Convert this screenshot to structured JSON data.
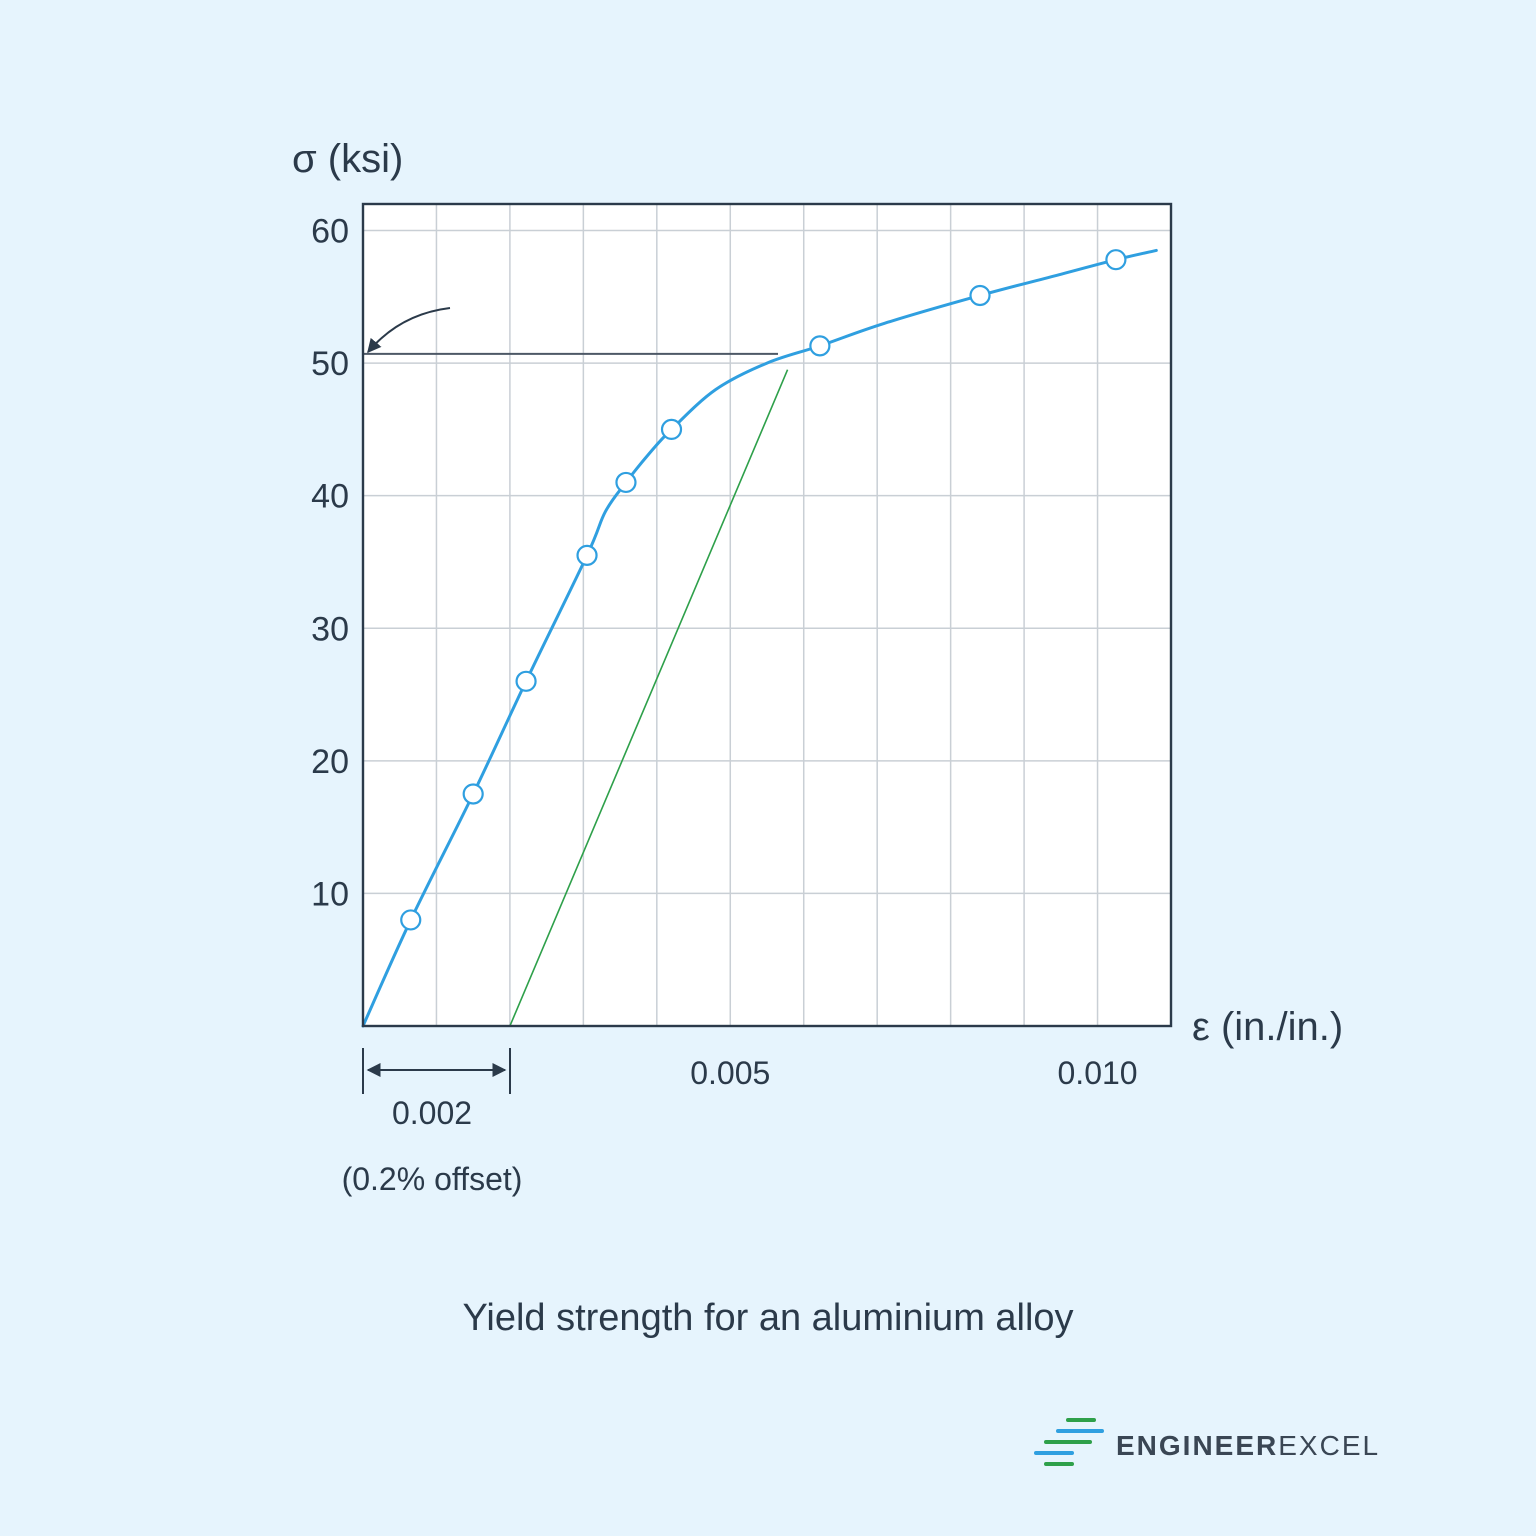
{
  "chart_data": {
    "type": "line",
    "title": "",
    "caption": "Yield strength for an aluminium alloy",
    "ylabel": "σ (ksi)",
    "xlabel": "ε (in./in.)",
    "xlim": [
      0,
      0.011
    ],
    "ylim": [
      0,
      62
    ],
    "grid": true,
    "y_ticks": [
      10,
      20,
      30,
      40,
      50,
      60
    ],
    "y_tick_labels": [
      "10",
      "20",
      "30",
      "40",
      "50",
      "60"
    ],
    "x_ticks": [
      0.005,
      0.01
    ],
    "x_tick_labels": [
      "0.005",
      "0.010"
    ],
    "x_gridlines": [
      0.001,
      0.002,
      0.003,
      0.004,
      0.005,
      0.006,
      0.007,
      0.008,
      0.009,
      0.01
    ],
    "series": [
      {
        "type": "curve",
        "color": "#2f9fe0",
        "curve": [
          [
            0.0,
            0.0
          ],
          [
            0.00065,
            8.0
          ],
          [
            0.0015,
            17.5
          ],
          [
            0.00222,
            26.0
          ],
          [
            0.00305,
            35.5
          ],
          [
            0.0033,
            38.8
          ],
          [
            0.00358,
            41.0
          ],
          [
            0.0039,
            43.2
          ],
          [
            0.0042,
            45.0
          ],
          [
            0.0048,
            48.0
          ],
          [
            0.0055,
            50.0
          ],
          [
            0.00622,
            51.3
          ],
          [
            0.0071,
            53.0
          ],
          [
            0.0084,
            55.1
          ],
          [
            0.0095,
            56.7
          ],
          [
            0.01025,
            57.8
          ],
          [
            0.0108,
            58.5
          ]
        ],
        "points": [
          [
            0.00065,
            8.0
          ],
          [
            0.0015,
            17.5
          ],
          [
            0.00222,
            26.0
          ],
          [
            0.00305,
            35.5
          ],
          [
            0.00358,
            41.0
          ],
          [
            0.0042,
            45.0
          ],
          [
            0.00622,
            51.3
          ],
          [
            0.0084,
            55.1
          ],
          [
            0.01025,
            57.8
          ]
        ]
      },
      {
        "type": "offset-line",
        "color": "#2ea04a",
        "from": [
          0.002,
          0.0
        ],
        "to": [
          0.00578,
          49.5
        ]
      }
    ],
    "yield_line": {
      "y": 50.7,
      "x_end": 0.00565,
      "color": "#4d5866"
    },
    "offset_annotation": {
      "from": 0.0,
      "to": 0.002,
      "value_label": "0.002",
      "note": "(0.2% offset)"
    }
  },
  "brand": {
    "name_bold": "ENGINEER",
    "name_light": "EXCEL",
    "colors": {
      "green": "#2ea04a",
      "blue": "#2f9fe0",
      "text": "#3a4654"
    }
  }
}
